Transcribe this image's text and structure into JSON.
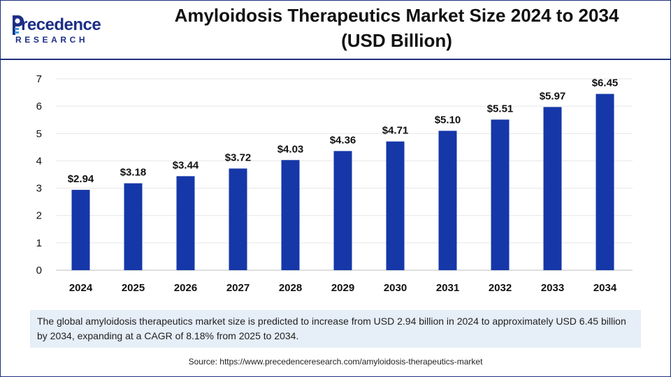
{
  "brand": {
    "logo_word": "recedence",
    "logo_letter": "P",
    "logo_sub": "RESEARCH",
    "color": "#1c2f86"
  },
  "title": {
    "line1": "Amyloidosis Therapeutics Market Size 2024 to 2034",
    "line2": "(USD Billion)"
  },
  "chart_data": {
    "type": "bar",
    "categories": [
      "2024",
      "2025",
      "2026",
      "2027",
      "2028",
      "2029",
      "2030",
      "2031",
      "2032",
      "2033",
      "2034"
    ],
    "values": [
      2.94,
      3.18,
      3.44,
      3.72,
      4.03,
      4.36,
      4.71,
      5.1,
      5.51,
      5.97,
      6.45
    ],
    "value_labels": [
      "$2.94",
      "$3.18",
      "$3.44",
      "$3.72",
      "$4.03",
      "$4.36",
      "$4.71",
      "$5.10",
      "$5.51",
      "$5.97",
      "$6.45"
    ],
    "yticks": [
      "0",
      "1",
      "2",
      "3",
      "4",
      "5",
      "6",
      "7"
    ],
    "ylim": [
      0,
      7
    ],
    "grid": true,
    "bar_color": "#1537a8",
    "title": "Amyloidosis Therapeutics Market Size 2024 to 2034 (USD Billion)",
    "xlabel": "",
    "ylabel": ""
  },
  "description": "The global amyloidosis therapeutics market size is predicted to increase from USD 2.94 billion in 2024 to approximately USD 6.45 billion by 2034, expanding at a CAGR of 8.18% from 2025 to 2034.",
  "source": "Source: https://www.precedenceresearch.com/amyloidosis-therapeutics-market"
}
